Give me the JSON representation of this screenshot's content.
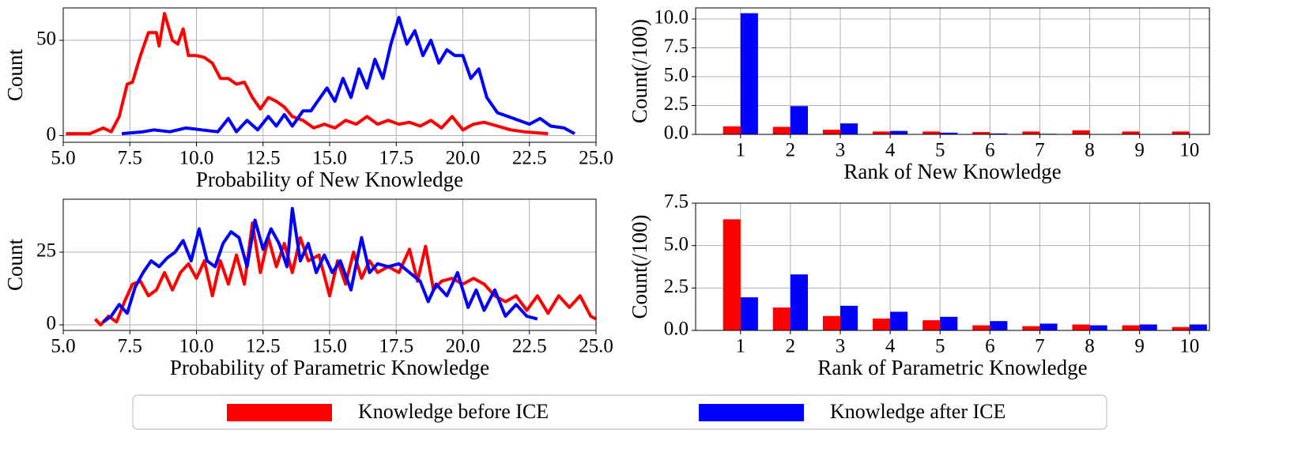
{
  "chart_data": [
    {
      "type": "line",
      "xlabel": "Probability of New Knowledge",
      "ylabel": "Count",
      "xlim": [
        5,
        25
      ],
      "xticks": [
        {
          "value": 5,
          "label": "5.0"
        },
        {
          "value": 7.5,
          "label": "7.5"
        },
        {
          "value": 10,
          "label": "10.0"
        },
        {
          "value": 12.5,
          "label": "12.5"
        },
        {
          "value": 15,
          "label": "15.0"
        },
        {
          "value": 17.5,
          "label": "17.5"
        },
        {
          "value": 20,
          "label": "20.0"
        },
        {
          "value": 22.5,
          "label": "22.5"
        },
        {
          "value": 25,
          "label": "25.0"
        }
      ],
      "ylim": [
        -3.5,
        67
      ],
      "yticks": [
        0,
        50
      ],
      "grid": true,
      "series": [
        {
          "name": "Knowledge before ICE",
          "color": "#ff0000",
          "x": [
            5.1,
            6.0,
            6.5,
            6.8,
            7.1,
            7.4,
            7.6,
            7.9,
            8.2,
            8.5,
            8.6,
            8.8,
            9.1,
            9.3,
            9.5,
            9.7,
            10.0,
            10.3,
            10.6,
            10.9,
            11.2,
            11.5,
            11.8,
            12.1,
            12.4,
            12.7,
            13.0,
            13.3,
            13.6,
            14.0,
            14.4,
            14.8,
            15.2,
            15.6,
            16.0,
            16.4,
            16.8,
            17.2,
            17.6,
            18.0,
            18.4,
            18.8,
            19.2,
            19.6,
            20.0,
            20.4,
            20.8,
            21.3,
            21.8,
            22.3,
            23.2
          ],
          "values": [
            1,
            1,
            4,
            2,
            10,
            27,
            28,
            42,
            54,
            54,
            47,
            64,
            50,
            48,
            56,
            42,
            42,
            41,
            38,
            30,
            30,
            27,
            28,
            20,
            14,
            20,
            18,
            15,
            10,
            8,
            4,
            6,
            4,
            8,
            6,
            10,
            6,
            8,
            6,
            7,
            5,
            8,
            4,
            10,
            3,
            6,
            7,
            5,
            3,
            2,
            1
          ]
        },
        {
          "name": "Knowledge after ICE",
          "color": "#0000ff",
          "x": [
            7.2,
            8.0,
            8.4,
            9.0,
            9.6,
            10.2,
            10.8,
            11.2,
            11.5,
            11.9,
            12.3,
            12.7,
            13.0,
            13.3,
            13.6,
            14.0,
            14.3,
            14.6,
            14.9,
            15.2,
            15.5,
            15.8,
            16.1,
            16.4,
            16.7,
            17.0,
            17.3,
            17.6,
            17.9,
            18.2,
            18.5,
            18.8,
            19.1,
            19.4,
            19.7,
            20.0,
            20.3,
            20.6,
            20.9,
            21.3,
            21.7,
            22.1,
            22.5,
            22.9,
            23.3,
            23.8,
            24.2
          ],
          "values": [
            1,
            2,
            3,
            2,
            4,
            3,
            2,
            9,
            2,
            8,
            3,
            10,
            5,
            11,
            5,
            13,
            13,
            19,
            25,
            18,
            30,
            20,
            35,
            25,
            40,
            30,
            48,
            62,
            48,
            55,
            42,
            50,
            38,
            45,
            42,
            42,
            30,
            35,
            20,
            12,
            10,
            8,
            6,
            9,
            5,
            4,
            1
          ]
        }
      ]
    },
    {
      "type": "bar",
      "xlabel": "Rank of New Knowledge",
      "ylabel": "Count(/100)",
      "x": [
        1,
        2,
        3,
        4,
        5,
        6,
        7,
        8,
        9,
        10
      ],
      "xlim": [
        0.1,
        10.4
      ],
      "ylim": [
        0,
        10.96
      ],
      "yticks": [
        {
          "value": 0,
          "label": "0.0"
        },
        {
          "value": 2.5,
          "label": "2.5"
        },
        {
          "value": 5,
          "label": "5.0"
        },
        {
          "value": 7.5,
          "label": "7.5"
        },
        {
          "value": 10,
          "label": "10.0"
        }
      ],
      "grid": true,
      "series": [
        {
          "name": "Knowledge before ICE",
          "color": "#ff0000",
          "values": [
            0.7,
            0.65,
            0.4,
            0.25,
            0.25,
            0.2,
            0.25,
            0.35,
            0.25,
            0.25
          ]
        },
        {
          "name": "Knowledge after ICE",
          "color": "#0000ff",
          "values": [
            10.5,
            2.45,
            0.95,
            0.3,
            0.15,
            0.08,
            0.05,
            0.03,
            0.02,
            0.02
          ]
        }
      ]
    },
    {
      "type": "line",
      "xlabel": "Probability of Parametric Knowledge",
      "ylabel": "Count",
      "xlim": [
        5,
        25
      ],
      "xticks": [
        {
          "value": 5,
          "label": "5.0"
        },
        {
          "value": 7.5,
          "label": "7.5"
        },
        {
          "value": 10,
          "label": "10.0"
        },
        {
          "value": 12.5,
          "label": "12.5"
        },
        {
          "value": 15,
          "label": "15.0"
        },
        {
          "value": 17.5,
          "label": "17.5"
        },
        {
          "value": 20,
          "label": "20.0"
        },
        {
          "value": 22.5,
          "label": "22.5"
        },
        {
          "value": 25,
          "label": "25.0"
        }
      ],
      "ylim": [
        -1.9,
        43.2
      ],
      "yticks": [
        0,
        25
      ],
      "grid": true,
      "series": [
        {
          "name": "Knowledge before ICE",
          "color": "#ff0000",
          "x": [
            6.2,
            6.4,
            6.7,
            7.0,
            7.3,
            7.6,
            7.9,
            8.2,
            8.5,
            8.8,
            9.1,
            9.4,
            9.7,
            10.0,
            10.3,
            10.6,
            10.9,
            11.2,
            11.5,
            11.8,
            12.1,
            12.4,
            12.7,
            13.0,
            13.3,
            13.6,
            13.9,
            14.2,
            14.6,
            15.0,
            15.3,
            15.6,
            15.9,
            16.2,
            16.5,
            16.8,
            17.2,
            17.6,
            18.0,
            18.3,
            18.6,
            18.9,
            19.2,
            19.6,
            20.0,
            20.4,
            20.8,
            21.2,
            21.6,
            22.0,
            22.4,
            22.8,
            23.2,
            23.6,
            24.0,
            24.4,
            24.8,
            25.0
          ],
          "values": [
            2,
            0,
            3,
            1,
            8,
            14,
            15,
            10,
            12,
            18,
            12,
            18,
            21,
            16,
            22,
            10,
            22,
            14,
            24,
            14,
            35,
            18,
            30,
            20,
            28,
            18,
            30,
            22,
            24,
            10,
            22,
            14,
            25,
            16,
            22,
            18,
            20,
            18,
            26,
            15,
            27,
            12,
            15,
            16,
            14,
            16,
            14,
            10,
            8,
            10,
            5,
            10,
            4,
            10,
            6,
            10,
            3,
            2
          ]
        },
        {
          "name": "Knowledge after ICE",
          "color": "#0000ff",
          "x": [
            6.5,
            6.8,
            7.1,
            7.4,
            7.7,
            8.0,
            8.3,
            8.6,
            8.9,
            9.2,
            9.5,
            9.8,
            10.1,
            10.4,
            10.7,
            11.0,
            11.3,
            11.6,
            11.9,
            12.2,
            12.5,
            12.8,
            13.1,
            13.4,
            13.6,
            13.9,
            14.2,
            14.5,
            14.8,
            15.1,
            15.4,
            15.8,
            16.2,
            16.5,
            16.8,
            17.2,
            17.6,
            18.0,
            18.4,
            18.7,
            19.0,
            19.4,
            19.8,
            20.2,
            20.5,
            20.8,
            21.2,
            21.6,
            22.0,
            22.4,
            22.8
          ],
          "values": [
            1,
            3,
            7,
            4,
            13,
            18,
            22,
            20,
            23,
            25,
            29,
            22,
            33,
            22,
            20,
            28,
            32,
            30,
            20,
            36,
            26,
            33,
            28,
            20,
            40,
            22,
            28,
            18,
            24,
            18,
            22,
            12,
            30,
            18,
            21,
            20,
            21,
            18,
            15,
            8,
            14,
            10,
            18,
            6,
            12,
            5,
            12,
            3,
            7,
            3,
            2
          ]
        }
      ]
    },
    {
      "type": "bar",
      "xlabel": "Rank of Parametric Knowledge",
      "ylabel": "Count(/100)",
      "x": [
        1,
        2,
        3,
        4,
        5,
        6,
        7,
        8,
        9,
        10
      ],
      "xlim": [
        0.1,
        10.4
      ],
      "ylim": [
        0,
        7.5
      ],
      "yticks": [
        {
          "value": 0,
          "label": "0.0"
        },
        {
          "value": 2.5,
          "label": "2.5"
        },
        {
          "value": 5,
          "label": "5.0"
        },
        {
          "value": 7.5,
          "label": "7.5"
        }
      ],
      "grid": true,
      "series": [
        {
          "name": "Knowledge before ICE",
          "color": "#ff0000",
          "values": [
            6.55,
            1.35,
            0.85,
            0.7,
            0.6,
            0.3,
            0.25,
            0.35,
            0.3,
            0.2
          ]
        },
        {
          "name": "Knowledge after ICE",
          "color": "#0000ff",
          "values": [
            1.95,
            3.3,
            1.45,
            1.1,
            0.8,
            0.55,
            0.4,
            0.3,
            0.35,
            0.35
          ]
        }
      ]
    }
  ]
}
